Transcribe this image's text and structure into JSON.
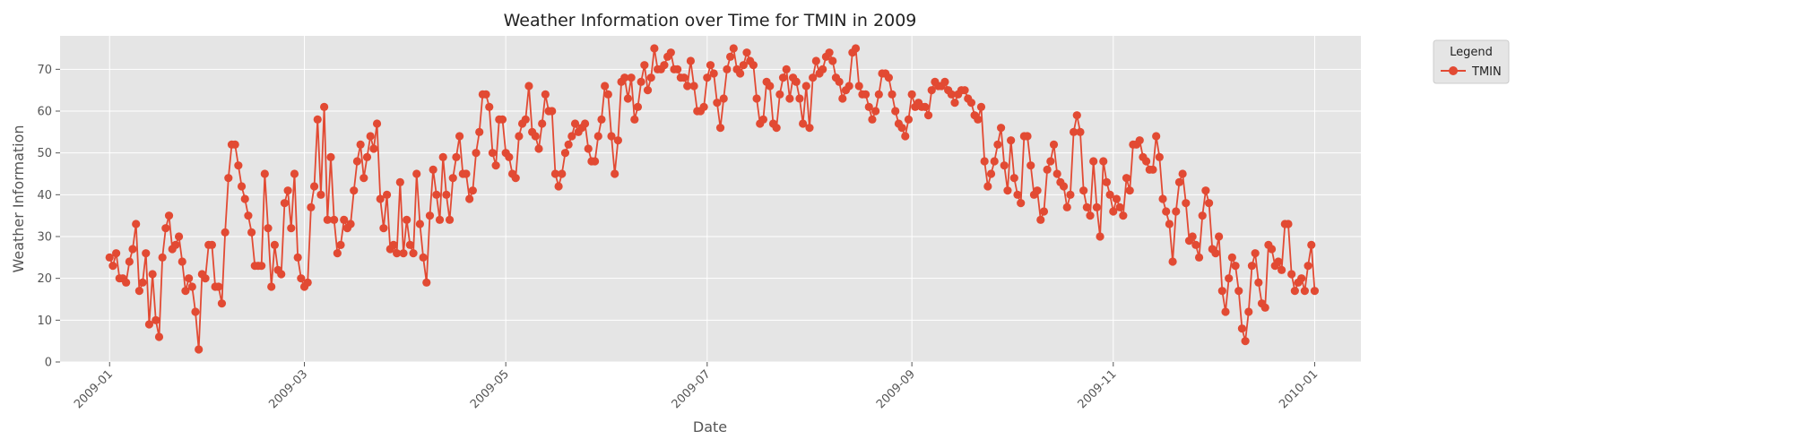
{
  "chart_data": {
    "type": "line",
    "title": "Weather Information over Time for TMIN in 2009",
    "xlabel": "Date",
    "ylabel": "Weather Information",
    "xlim": [
      "2008-12-17",
      "2010-01-15"
    ],
    "ylim": [
      0,
      78
    ],
    "x_ticks": [
      "2009-01",
      "2009-03",
      "2009-05",
      "2009-07",
      "2009-09",
      "2009-11",
      "2010-01"
    ],
    "y_ticks": [
      0,
      10,
      20,
      30,
      40,
      50,
      60,
      70
    ],
    "grid": true,
    "legend": {
      "title": "Legend",
      "placement": "outside-top-right"
    },
    "x_start": "2009-01-01",
    "x_step_days": 1,
    "series": [
      {
        "name": "TMIN",
        "color": "#E24A33",
        "marker": "circle",
        "values": [
          25,
          23,
          26,
          20,
          20,
          19,
          24,
          27,
          33,
          17,
          19,
          26,
          9,
          21,
          10,
          6,
          25,
          32,
          35,
          27,
          28,
          30,
          24,
          17,
          20,
          18,
          12,
          3,
          21,
          20,
          28,
          28,
          18,
          18,
          14,
          31,
          44,
          52,
          52,
          47,
          42,
          39,
          35,
          31,
          23,
          23,
          23,
          45,
          32,
          18,
          28,
          22,
          21,
          38,
          41,
          32,
          45,
          25,
          20,
          18,
          19,
          37,
          42,
          58,
          40,
          61,
          34,
          49,
          34,
          26,
          28,
          34,
          32,
          33,
          41,
          48,
          52,
          44,
          49,
          54,
          51,
          57,
          39,
          32,
          40,
          27,
          28,
          26,
          43,
          26,
          34,
          28,
          26,
          45,
          33,
          25,
          19,
          35,
          46,
          40,
          34,
          49,
          40,
          34,
          44,
          49,
          54,
          45,
          45,
          39,
          41,
          50,
          55,
          64,
          64,
          61,
          50,
          47,
          58,
          58,
          50,
          49,
          45,
          44,
          54,
          57,
          58,
          66,
          55,
          54,
          51,
          57,
          64,
          60,
          60,
          45,
          42,
          45,
          50,
          52,
          54,
          57,
          55,
          56,
          57,
          51,
          48,
          48,
          54,
          58,
          66,
          64,
          54,
          45,
          53,
          67,
          68,
          63,
          68,
          58,
          61,
          67,
          71,
          65,
          68,
          75,
          70,
          70,
          71,
          73,
          74,
          70,
          70,
          68,
          68,
          66,
          72,
          66,
          60,
          60,
          61,
          68,
          71,
          69,
          62,
          56,
          63,
          70,
          73,
          75,
          70,
          69,
          71,
          74,
          72,
          71,
          63,
          57,
          58,
          67,
          66,
          57,
          56,
          64,
          68,
          70,
          63,
          68,
          67,
          63,
          57,
          66,
          56,
          68,
          72,
          69,
          70,
          73,
          74,
          72,
          68,
          67,
          63,
          65,
          66,
          74,
          75,
          66,
          64,
          64,
          61,
          58,
          60,
          64,
          69,
          69,
          68,
          64,
          60,
          57,
          56,
          54,
          58,
          64,
          61,
          62,
          61,
          61,
          59,
          65,
          67,
          66,
          66,
          67,
          65,
          64,
          62,
          64,
          65,
          65,
          63,
          62,
          59,
          58,
          61,
          48,
          42,
          45,
          48,
          52,
          56,
          47,
          41,
          53,
          44,
          40,
          38,
          54,
          54,
          47,
          40,
          41,
          34,
          36,
          46,
          48,
          52,
          45,
          43,
          42,
          37,
          40,
          55,
          59,
          55,
          41,
          37,
          35,
          48,
          37,
          30,
          48,
          43,
          40,
          36,
          39,
          37,
          35,
          44,
          41,
          52,
          52,
          53,
          49,
          48,
          46,
          46,
          54,
          49,
          39,
          36,
          33,
          24,
          36,
          43,
          45,
          38,
          29,
          30,
          28,
          25,
          35,
          41,
          38,
          27,
          26,
          30,
          17,
          12,
          20,
          25,
          23,
          17,
          8,
          5,
          12,
          23,
          26,
          19,
          14,
          13,
          28,
          27,
          23,
          24,
          22,
          33,
          33,
          21,
          17,
          19,
          20,
          17,
          23,
          28,
          17
        ]
      }
    ]
  }
}
